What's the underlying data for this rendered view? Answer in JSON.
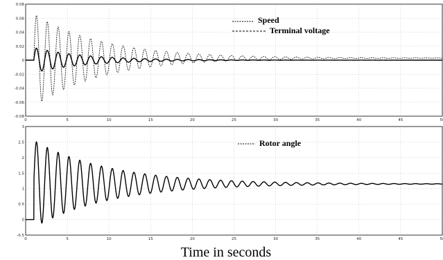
{
  "xlabel": "Time in seconds",
  "chart_data": [
    {
      "type": "line",
      "xlim": [
        0,
        50
      ],
      "ylim": [
        -0.08,
        0.08
      ],
      "x_ticks": [
        0,
        5,
        10,
        15,
        20,
        25,
        30,
        35,
        40,
        45,
        50
      ],
      "y_ticks": [
        -0.08,
        -0.06,
        -0.04,
        -0.02,
        0,
        0.02,
        0.04,
        0.06,
        0.08
      ],
      "x_tick_labels": [
        "0",
        "5",
        "10",
        "15",
        "20",
        "25",
        "30",
        "35",
        "40",
        "45",
        "50"
      ],
      "y_tick_labels": [
        "-0.08",
        "-0.06",
        "-0.04",
        "-0.02",
        "0",
        "0.02",
        "0.04",
        "0.06",
        "0.08"
      ],
      "grid": true,
      "legend_position": "top-right",
      "series": [
        {
          "name": "Speed",
          "style": "solid",
          "color": "#000000",
          "step_time": 1.0,
          "initial_peak": 0.018,
          "period": 1.3,
          "decay_rate": 0.16,
          "final_value": 0.0,
          "points": [
            [
              0,
              0
            ],
            [
              1,
              0
            ],
            [
              1.3,
              0.018
            ],
            [
              2,
              -0.012
            ],
            [
              2.6,
              0.016
            ],
            [
              3.3,
              -0.011
            ],
            [
              3.9,
              0.015
            ],
            [
              5,
              -0.01
            ],
            [
              7.5,
              0.008
            ],
            [
              10,
              0.005
            ],
            [
              15,
              0.002
            ],
            [
              20,
              0.001
            ],
            [
              30,
              0.0
            ],
            [
              50,
              0.0
            ]
          ]
        },
        {
          "name": "Terminal voltage",
          "style": "dashed",
          "color": "#222222",
          "step_time": 1.0,
          "initial_peak": 0.066,
          "period": 1.3,
          "decay_rate": 0.12,
          "final_value": 0.003,
          "points": [
            [
              0,
              0
            ],
            [
              1,
              0
            ],
            [
              1.3,
              0.066
            ],
            [
              1.9,
              -0.065
            ],
            [
              2.6,
              0.06
            ],
            [
              3.2,
              -0.05
            ],
            [
              3.9,
              0.055
            ],
            [
              5,
              0.045
            ],
            [
              10,
              0.03
            ],
            [
              15,
              0.02
            ],
            [
              20,
              0.012
            ],
            [
              25,
              0.008
            ],
            [
              30,
              0.006
            ],
            [
              40,
              0.004
            ],
            [
              50,
              0.003
            ]
          ]
        }
      ]
    },
    {
      "type": "line",
      "xlim": [
        0,
        50
      ],
      "ylim": [
        -0.5,
        3
      ],
      "x_ticks": [
        0,
        5,
        10,
        15,
        20,
        25,
        30,
        35,
        40,
        45,
        50
      ],
      "y_ticks": [
        -0.5,
        0,
        0.5,
        1,
        1.5,
        2,
        2.5,
        3
      ],
      "x_tick_labels": [
        "0",
        "5",
        "10",
        "15",
        "20",
        "25",
        "30",
        "35",
        "40",
        "45",
        "50"
      ],
      "y_tick_labels": [
        "-0.5",
        "0",
        "0.5",
        "1",
        "1.5",
        "2",
        "2.5",
        "3"
      ],
      "grid": true,
      "legend_position": "top-center",
      "series": [
        {
          "name": "Rotor angle",
          "style": "solid",
          "color": "#000000",
          "step_time": 1.0,
          "initial_peak": 2.55,
          "period": 1.3,
          "decay_rate": 0.11,
          "final_value": 1.15,
          "points": [
            [
              0,
              0
            ],
            [
              1,
              0
            ],
            [
              1.4,
              2.55
            ],
            [
              2,
              -0.05
            ],
            [
              2.7,
              2.3
            ],
            [
              3.3,
              0.1
            ],
            [
              4,
              2.1
            ],
            [
              5,
              1.9
            ],
            [
              10,
              1.6
            ],
            [
              15,
              1.4
            ],
            [
              20,
              1.3
            ],
            [
              30,
              1.2
            ],
            [
              40,
              1.17
            ],
            [
              50,
              1.15
            ]
          ]
        }
      ]
    }
  ]
}
